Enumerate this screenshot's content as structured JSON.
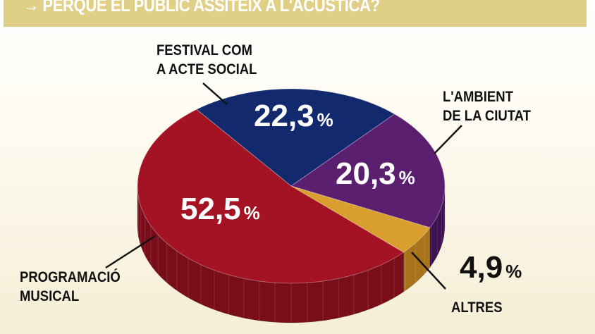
{
  "chart_data": {
    "type": "pie",
    "title": "→ PERQUÈ EL PÚBLIC ASSITEIX A L'ACÚSTICA?",
    "unit": "%",
    "slices": [
      {
        "label": "FESTIVAL COM A ACTE SOCIAL",
        "label_lines": [
          "FESTIVAL COM",
          "A ACTE SOCIAL"
        ],
        "value": 22.3,
        "display": "22,3",
        "color": "#12296e",
        "side": "#0b1a48"
      },
      {
        "label": "L'AMBIENT DE LA CIUTAT",
        "label_lines": [
          "L'AMBIENT",
          "DE LA CIUTAT"
        ],
        "value": 20.3,
        "display": "20,3",
        "color": "#5b1f70",
        "side": "#3d1250"
      },
      {
        "label": "ALTRES",
        "label_lines": [
          "ALTRES"
        ],
        "value": 4.9,
        "display": "4,9",
        "color": "#d89e2e",
        "side": "#a8731a"
      },
      {
        "label": "PROGRAMACIÓ MUSICAL",
        "label_lines": [
          "PROGRAMACIÓ",
          "MUSICAL"
        ],
        "value": 52.5,
        "display": "52,5",
        "color": "#a31324",
        "side": "#7a0d1a"
      }
    ]
  }
}
